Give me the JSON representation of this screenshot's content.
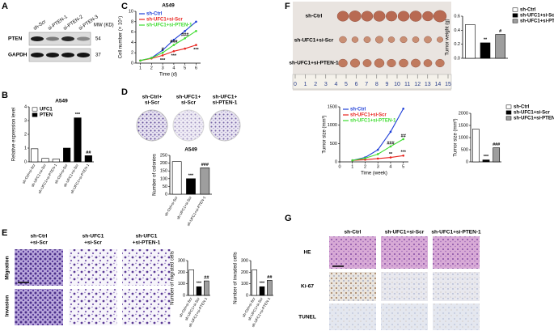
{
  "figure": {
    "panels": [
      "A",
      "B",
      "C",
      "D",
      "E",
      "F",
      "G"
    ],
    "blot": {
      "lanes": [
        "sh-Scr",
        "si-PTEN-1",
        "si-PTEN-2",
        "si-PTEN-3"
      ],
      "mw_header": "MW (KD)",
      "rows": [
        {
          "label": "PTEN",
          "mw": "54"
        },
        {
          "label": "GAPDH",
          "mw": "37"
        }
      ]
    },
    "colony": {
      "lanes": [
        [
          "sh-Ctrl+",
          "si-Scr"
        ],
        [
          "sh-UFC1+",
          "si-Scr"
        ],
        [
          "sh-UFC1+",
          "si-PTEN-1"
        ]
      ]
    },
    "transwell": {
      "columns": [
        [
          "sh-Ctrl",
          "+si-Scr"
        ],
        [
          "sh-UFC1",
          "+si-Scr"
        ],
        [
          "sh-UFC1",
          "+si-PTEN-1"
        ]
      ],
      "rows": [
        "Migration",
        "Invasion"
      ]
    },
    "tumor": {
      "rows": [
        "sh-Ctrl",
        "sh-UFC1+si-Scr",
        "sh-UFC1+si-PTEN-1"
      ],
      "ruler": [
        "0",
        "1",
        "2",
        "3",
        "4",
        "5",
        "6",
        "7",
        "8",
        "9",
        "10",
        "11",
        "12",
        "13",
        "14",
        "15"
      ]
    },
    "ihc": {
      "columns": [
        "sh-Ctrl",
        "sh-UFC1+si-Scr",
        "sh-UFC1+si-PTEN-1"
      ],
      "rows": [
        "HE",
        "Ki-67",
        "TUNEL"
      ]
    }
  },
  "chart_data": [
    {
      "type": "bar",
      "title": "A549",
      "ylabel": "Relative expression level",
      "categories": [
        "sh-Ctrl+si-Scr",
        "sh-UFC1+si-Scr",
        "sh-UFC1+si-PTEN-1",
        "sh-Ctrl+si-Scr",
        "sh-UFC1+si-Scr",
        "sh-UFC1+si-PTEN-1"
      ],
      "series": [
        {
          "name": "UFC1",
          "color": "#ffffff",
          "values": [
            0.95,
            0.25,
            0.2,
            null,
            null,
            null
          ]
        },
        {
          "name": "PTEN",
          "color": "#000000",
          "values": [
            null,
            null,
            null,
            1.0,
            3.2,
            0.45
          ]
        }
      ],
      "ylim": [
        0,
        4
      ],
      "yticks": [
        0,
        1,
        2,
        3,
        4
      ],
      "legend": "top-left",
      "annotations": [
        {
          "text": "***",
          "series": 1,
          "index": 4
        },
        {
          "text": "##",
          "series": 1,
          "index": 5
        }
      ]
    },
    {
      "type": "line",
      "title": "A549",
      "ylabel": "Cell number (× 10⁴)",
      "xlabel": "Time (d)",
      "x": [
        1,
        2,
        3,
        4,
        5,
        6
      ],
      "xlim": [
        0.6,
        6.4
      ],
      "xticks": [
        1,
        2,
        3,
        4,
        5,
        6
      ],
      "ylim": [
        0,
        10
      ],
      "yticks": [
        0,
        2,
        4,
        6,
        8,
        10
      ],
      "legend": "top-left",
      "series": [
        {
          "name": "sh-Ctrl",
          "color": "#1f3fd8",
          "values": [
            0.5,
            1.0,
            2.5,
            4.5,
            6.2,
            8.0
          ]
        },
        {
          "name": "sh-UFC1+si-Scr",
          "color": "#e8231d",
          "values": [
            0.5,
            0.9,
            1.5,
            2.3,
            2.8,
            3.5
          ]
        },
        {
          "name": "sh-UFC1+si-PTEN-1",
          "color": "#3ddc2e",
          "values": [
            0.5,
            1.0,
            2.0,
            3.5,
            4.8,
            6.2
          ]
        }
      ],
      "annotations": [
        {
          "text": "***",
          "series": 1,
          "index": 2,
          "placement": "below"
        },
        {
          "text": "***",
          "series": 1,
          "index": 3,
          "placement": "below"
        },
        {
          "text": "***",
          "series": 1,
          "index": 5,
          "placement": "below"
        },
        {
          "text": "#",
          "series": 2,
          "index": 2
        },
        {
          "text": "###",
          "series": 2,
          "index": 3
        },
        {
          "text": "###",
          "series": 2,
          "index": 4
        }
      ]
    },
    {
      "type": "bar",
      "title": "A549",
      "ylabel": "Number of colonies",
      "categories": [
        "sh-Ctrl+si-Scr",
        "sh-UFC1+si-Scr",
        "sh-UFC1+si-PTEN-1"
      ],
      "values": [
        210,
        100,
        170
      ],
      "colors": [
        "#ffffff",
        "#000000",
        "#9e9e9e"
      ],
      "ylim": [
        0,
        250
      ],
      "yticks": [
        0,
        50,
        100,
        150,
        200,
        250
      ],
      "annotations": [
        {
          "text": "***",
          "index": 1
        },
        {
          "text": "###",
          "index": 2
        }
      ]
    },
    {
      "type": "bar",
      "ylabel": "Number of migrated cells",
      "categories": [
        "sh-Ctrl+si-Scr",
        "sh-UFC1+si-Scr",
        "sh-UFC1+si-PTEN-1"
      ],
      "values": [
        220,
        75,
        125
      ],
      "colors": [
        "#ffffff",
        "#000000",
        "#9e9e9e"
      ],
      "ylim": [
        0,
        300
      ],
      "yticks": [
        0,
        100,
        200,
        300
      ],
      "annotations": [
        {
          "text": "***",
          "index": 1
        },
        {
          "text": "##",
          "index": 2
        }
      ]
    },
    {
      "type": "bar",
      "ylabel": "Number of invaded cells",
      "categories": [
        "sh-Ctrl+si-Scr",
        "sh-UFC1+si-Scr",
        "sh-UFC1+si-PTEN-1"
      ],
      "values": [
        220,
        75,
        130
      ],
      "colors": [
        "#ffffff",
        "#000000",
        "#9e9e9e"
      ],
      "ylim": [
        0,
        300
      ],
      "yticks": [
        0,
        100,
        200,
        300
      ],
      "annotations": [
        {
          "text": "***",
          "index": 1
        },
        {
          "text": "##",
          "index": 2
        }
      ]
    },
    {
      "type": "bar",
      "ylabel": "Tumor weight (g)",
      "categories": [
        null,
        null,
        null
      ],
      "series": [
        {
          "name": "sh-Ctrl",
          "color": "#ffffff",
          "values": [
            0.48,
            null,
            null
          ]
        },
        {
          "name": "sh-UFC1+si-Scr",
          "color": "#000000",
          "values": [
            null,
            0.22,
            null
          ]
        },
        {
          "name": "sh-UFC1+si-PTEN-1",
          "color": "#9e9e9e",
          "values": [
            null,
            null,
            0.34
          ]
        }
      ],
      "ylim": [
        0,
        0.6
      ],
      "yticks": [
        {
          "value": 0,
          "label": "0.0"
        },
        0.2,
        0.4,
        0.6
      ],
      "legend": "right",
      "annotations": [
        {
          "text": "**",
          "series": 1,
          "index": 1
        },
        {
          "text": "#",
          "series": 2,
          "index": 2
        }
      ]
    },
    {
      "type": "line",
      "ylabel": "Tumor size (mm³)",
      "xlabel": "Time (week)",
      "x": [
        1,
        2,
        3,
        4,
        5
      ],
      "xlim": [
        0,
        5.4
      ],
      "xticks": [
        0,
        1,
        2,
        3,
        4,
        5
      ],
      "ylim": [
        0,
        1500
      ],
      "yticks": [
        0,
        500,
        1000,
        1500
      ],
      "legend": "top-left",
      "series": [
        {
          "name": "sh-Ctrl",
          "color": "#1f3fd8",
          "values": [
            40,
            120,
            330,
            820,
            1450
          ]
        },
        {
          "name": "sh-UFC1+si-Scr",
          "color": "#e8231d",
          "values": [
            40,
            60,
            90,
            120,
            170
          ]
        },
        {
          "name": "sh-UFC1+si-PTEN-1",
          "color": "#3ddc2e",
          "values": [
            40,
            100,
            210,
            420,
            620
          ]
        }
      ],
      "annotations": [
        {
          "text": "**",
          "series": 1,
          "index": 3
        },
        {
          "text": "***",
          "series": 1,
          "index": 4
        },
        {
          "text": "###",
          "series": 2,
          "index": 3
        },
        {
          "text": "##",
          "series": 2,
          "index": 4
        }
      ]
    },
    {
      "type": "bar",
      "ylabel": "Tumor size (mm³)",
      "categories": [
        null,
        null,
        null
      ],
      "series": [
        {
          "name": "sh-Ctrl",
          "color": "#ffffff",
          "values": [
            1350,
            null,
            null
          ]
        },
        {
          "name": "sh-UFC1+si-Scr",
          "color": "#000000",
          "values": [
            null,
            80,
            null
          ]
        },
        {
          "name": "sh-UFC1+si-PTEN-1",
          "color": "#9e9e9e",
          "values": [
            null,
            null,
            580
          ]
        }
      ],
      "ylim": [
        0,
        2000
      ],
      "yticks": [
        0,
        500,
        1000,
        1500,
        2000
      ],
      "legend": "right",
      "annotations": [
        {
          "text": "***",
          "series": 1,
          "index": 1
        },
        {
          "text": "###",
          "series": 2,
          "index": 2
        }
      ]
    }
  ]
}
